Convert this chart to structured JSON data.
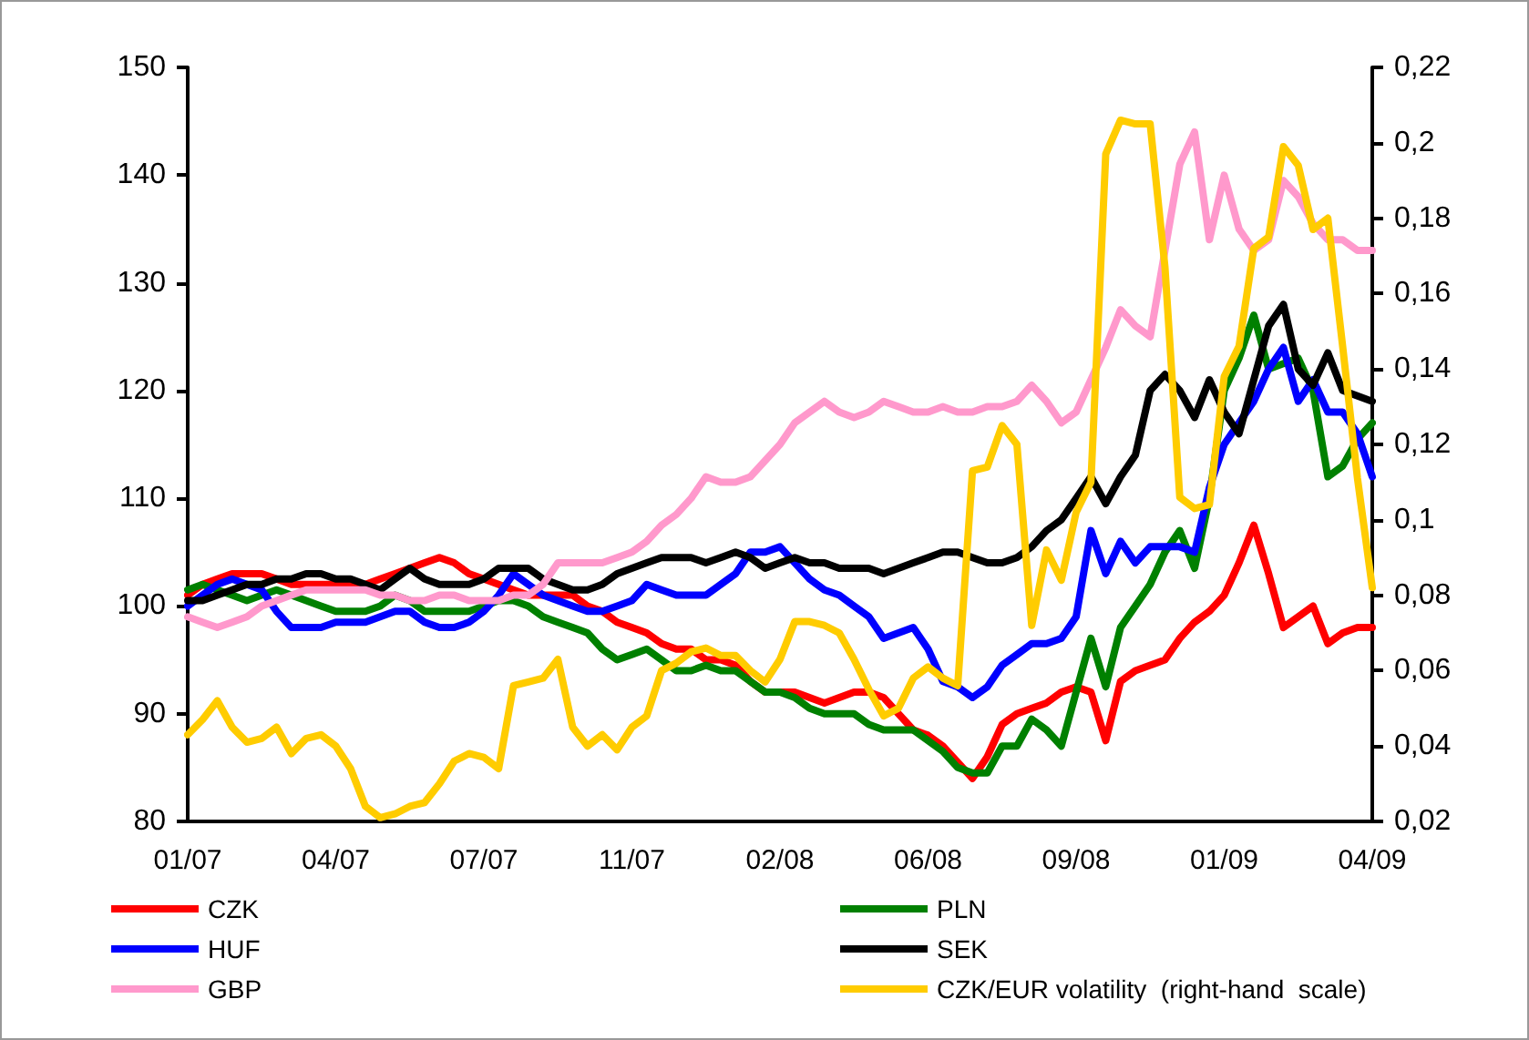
{
  "chart_data": {
    "type": "line",
    "marker": "none",
    "legend": "bottom",
    "categories": [
      "01/07",
      null,
      null,
      null,
      null,
      null,
      null,
      null,
      null,
      null,
      "04/07",
      null,
      null,
      null,
      null,
      null,
      null,
      null,
      null,
      null,
      "07/07",
      null,
      null,
      null,
      null,
      null,
      null,
      null,
      null,
      null,
      "11/07",
      null,
      null,
      null,
      null,
      null,
      null,
      null,
      null,
      null,
      "02/08",
      null,
      null,
      null,
      null,
      null,
      null,
      null,
      null,
      null,
      "06/08",
      null,
      null,
      null,
      null,
      null,
      null,
      null,
      null,
      null,
      "09/08",
      null,
      null,
      null,
      null,
      null,
      null,
      null,
      null,
      null,
      "01/09",
      null,
      null,
      null,
      null,
      null,
      null,
      null,
      null,
      null,
      "04/09"
    ],
    "ylim": [
      80,
      150
    ],
    "yticks": [
      80,
      90,
      100,
      110,
      120,
      130,
      140,
      150
    ],
    "y2lim": [
      0.02,
      0.22
    ],
    "y2ticks": [
      {
        "value": 0.02,
        "label": "0,02"
      },
      {
        "value": 0.04,
        "label": "0,04"
      },
      {
        "value": 0.06,
        "label": "0,06"
      },
      {
        "value": 0.08,
        "label": "0,08"
      },
      {
        "value": 0.1,
        "label": "0,1"
      },
      {
        "value": 0.12,
        "label": "0,12"
      },
      {
        "value": 0.14,
        "label": "0,14"
      },
      {
        "value": 0.16,
        "label": "0,16"
      },
      {
        "value": 0.18,
        "label": "0,18"
      },
      {
        "value": 0.2,
        "label": "0,2"
      },
      {
        "value": 0.22,
        "label": "0,22"
      }
    ],
    "series": [
      {
        "name": "CZK",
        "color": "#ff0000",
        "values": [
          101,
          102,
          102.5,
          103,
          103,
          103,
          102.5,
          102,
          102,
          102,
          102,
          102,
          102,
          102.5,
          103,
          103.5,
          104,
          104.5,
          104,
          103,
          102.5,
          102,
          101.5,
          101,
          101,
          101,
          101,
          100,
          99.5,
          98.5,
          98,
          97.5,
          96.5,
          96,
          96,
          95,
          95,
          94.5,
          93,
          92,
          92,
          92,
          91.5,
          91,
          91.5,
          92,
          92,
          91.5,
          90,
          88.5,
          88,
          87,
          85.5,
          84,
          86,
          89,
          90,
          90.5,
          91,
          92,
          92.5,
          92,
          87.5,
          93,
          94,
          94.5,
          95,
          97,
          98.5,
          99.5,
          101,
          104,
          107.5,
          103,
          98,
          99,
          100,
          96.5,
          97.5,
          98,
          98
        ]
      },
      {
        "name": "PLN",
        "color": "#008000",
        "values": [
          101.5,
          102,
          101.5,
          101,
          100.5,
          101,
          101.5,
          101,
          100.5,
          100,
          99.5,
          99.5,
          99.5,
          100,
          101,
          100.5,
          99.5,
          99.5,
          99.5,
          99.5,
          100,
          100.5,
          100.5,
          100,
          99,
          98.5,
          98,
          97.5,
          96,
          95,
          95.5,
          96,
          95,
          94,
          94,
          94.5,
          94,
          94,
          93,
          92,
          92,
          91.5,
          90.5,
          90,
          90,
          90,
          89,
          88.5,
          88.5,
          88.5,
          87.5,
          86.5,
          85,
          84.5,
          84.5,
          87,
          87,
          89.5,
          88.5,
          87,
          92,
          97,
          92.5,
          98,
          100,
          102,
          105,
          107,
          103.5,
          110,
          120,
          123,
          127,
          122,
          122.5,
          123,
          120,
          112,
          113,
          115.5,
          117
        ]
      },
      {
        "name": "HUF",
        "color": "#0000ff",
        "values": [
          100,
          101,
          102,
          102.5,
          102,
          101.5,
          99.5,
          98,
          98,
          98,
          98.5,
          98.5,
          98.5,
          99,
          99.5,
          99.5,
          98.5,
          98,
          98,
          98.5,
          99.5,
          101,
          103,
          102,
          101,
          100.5,
          100,
          99.5,
          99.5,
          100,
          100.5,
          102,
          101.5,
          101,
          101,
          101,
          102,
          103,
          105,
          105,
          105.5,
          104,
          102.5,
          101.5,
          101,
          100,
          99,
          97,
          97.5,
          98,
          96,
          93,
          92.5,
          91.5,
          92.5,
          94.5,
          95.5,
          96.5,
          96.5,
          97,
          99,
          107,
          103,
          106,
          104,
          105.5,
          105.5,
          105.5,
          105,
          111,
          115,
          117,
          119,
          122,
          124,
          119,
          121,
          118,
          118,
          116,
          112
        ]
      },
      {
        "name": "SEK",
        "color": "#000000",
        "values": [
          100.5,
          100.5,
          101,
          101.5,
          102,
          102,
          102.5,
          102.5,
          103,
          103,
          102.5,
          102.5,
          102,
          101.5,
          102.5,
          103.5,
          102.5,
          102,
          102,
          102,
          102.5,
          103.5,
          103.5,
          103.5,
          102.5,
          102,
          101.5,
          101.5,
          102,
          103,
          103.5,
          104,
          104.5,
          104.5,
          104.5,
          104,
          104.5,
          105,
          104.5,
          103.5,
          104,
          104.5,
          104,
          104,
          103.5,
          103.5,
          103.5,
          103,
          103.5,
          104,
          104.5,
          105,
          105,
          104.5,
          104,
          104,
          104.5,
          105.5,
          107,
          108,
          110,
          112,
          109.5,
          112,
          114,
          120,
          121.5,
          120,
          117.5,
          121,
          118,
          116,
          121,
          126,
          128,
          122,
          120.5,
          123.5,
          120,
          119.5,
          119
        ]
      },
      {
        "name": "GBP",
        "color": "#ff99cc",
        "values": [
          99,
          98.5,
          98,
          98.5,
          99,
          100,
          100.5,
          101,
          101.5,
          101.5,
          101.5,
          101.5,
          101.5,
          101,
          101,
          100.5,
          100.5,
          101,
          101,
          100.5,
          100.5,
          100.5,
          101,
          101,
          102,
          104,
          104,
          104,
          104,
          104.5,
          105,
          106,
          107.5,
          108.5,
          110,
          112,
          111.5,
          111.5,
          112,
          113.5,
          115,
          117,
          118,
          119,
          118,
          117.5,
          118,
          119,
          118.5,
          118,
          118,
          118.5,
          118,
          118,
          118.5,
          118.5,
          119,
          120.5,
          119,
          117,
          118,
          121,
          124,
          127.5,
          126,
          125,
          133,
          141,
          144,
          134,
          140,
          135,
          133,
          134,
          139.5,
          138,
          135.5,
          134,
          134,
          133,
          133
        ]
      },
      {
        "name": "CZK/EUR volatility  (right-hand  scale)",
        "color": "#ffcc00",
        "axis": "y2",
        "values": [
          0.043,
          0.047,
          0.052,
          0.045,
          0.041,
          0.042,
          0.045,
          0.038,
          0.042,
          0.043,
          0.04,
          0.034,
          0.024,
          0.021,
          0.022,
          0.024,
          0.025,
          0.03,
          0.036,
          0.038,
          0.037,
          0.034,
          0.056,
          0.057,
          0.058,
          0.063,
          0.045,
          0.04,
          0.043,
          0.039,
          0.045,
          0.048,
          0.06,
          0.062,
          0.065,
          0.066,
          0.064,
          0.064,
          0.06,
          0.057,
          0.063,
          0.073,
          0.073,
          0.072,
          0.07,
          0.063,
          0.055,
          0.048,
          0.05,
          0.058,
          0.061,
          0.058,
          0.056,
          0.113,
          0.114,
          0.125,
          0.12,
          0.072,
          0.092,
          0.084,
          0.102,
          0.11,
          0.197,
          0.206,
          0.205,
          0.205,
          0.167,
          0.106,
          0.103,
          0.104,
          0.138,
          0.146,
          0.172,
          0.175,
          0.199,
          0.194,
          0.177,
          0.18,
          0.146,
          0.111,
          0.082
        ]
      }
    ]
  }
}
